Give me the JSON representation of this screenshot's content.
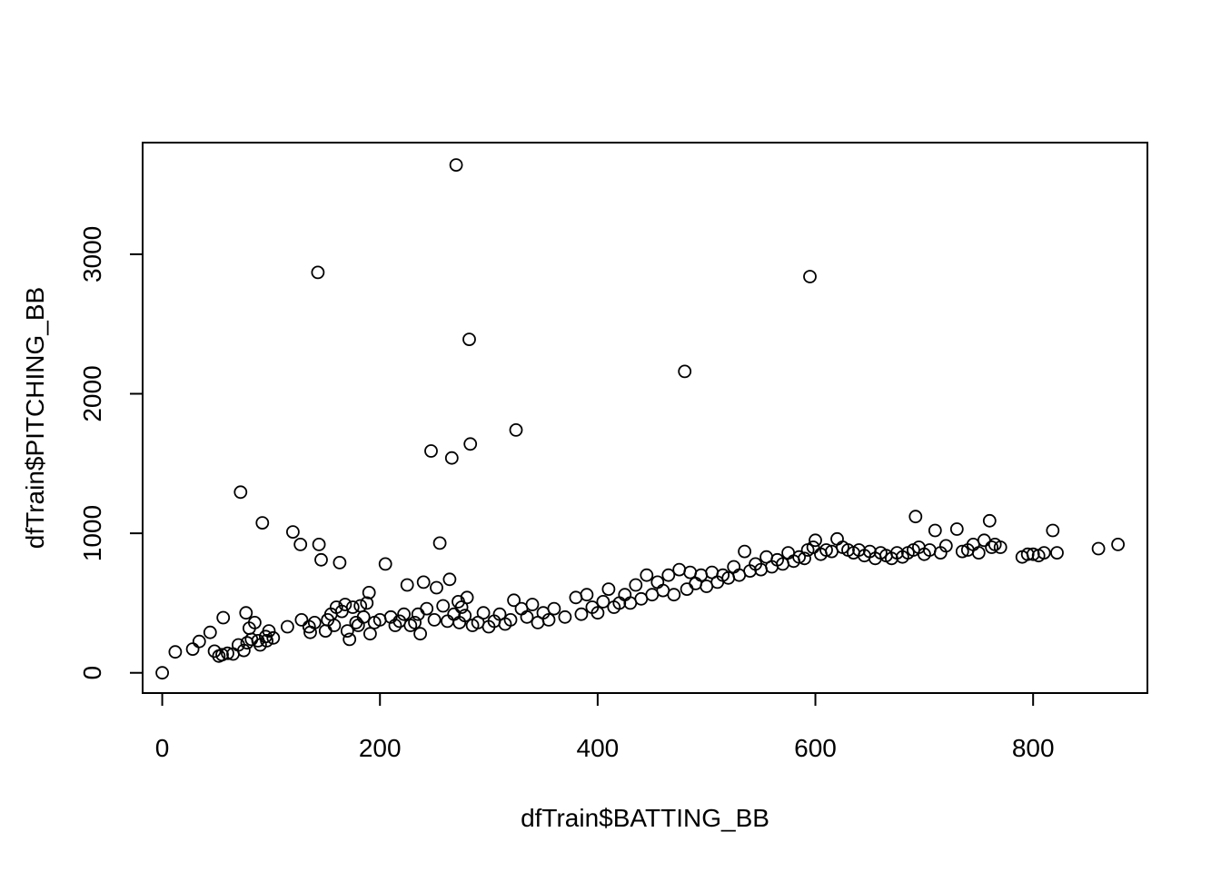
{
  "chart_data": {
    "type": "scatter",
    "title": "",
    "xlabel": "dfTrain$BATTING_BB",
    "ylabel": "dfTrain$PITCHING_BB",
    "xlim": [
      -18,
      905
    ],
    "ylim": [
      -145,
      3800
    ],
    "x_ticks": [
      0,
      200,
      400,
      600,
      800
    ],
    "x_tick_labels": [
      "0",
      "200",
      "400",
      "600",
      "800"
    ],
    "y_ticks": [
      0,
      1000,
      2000,
      3000
    ],
    "y_tick_labels": [
      "0",
      "1000",
      "2000",
      "3000"
    ],
    "grid": false,
    "legend": "none",
    "marker": "open-circle",
    "colors": {
      "point_stroke": "#000000",
      "axis": "#000000",
      "background": "#ffffff"
    },
    "series": [
      {
        "points": [
          [
            0,
            0
          ],
          [
            12,
            150
          ],
          [
            28,
            170
          ],
          [
            34,
            225
          ],
          [
            44,
            290
          ],
          [
            48,
            155
          ],
          [
            52,
            120
          ],
          [
            55,
            130
          ],
          [
            56,
            395
          ],
          [
            60,
            140
          ],
          [
            65,
            135
          ],
          [
            70,
            200
          ],
          [
            72,
            1295
          ],
          [
            75,
            160
          ],
          [
            77,
            430
          ],
          [
            78,
            215
          ],
          [
            80,
            320
          ],
          [
            82,
            240
          ],
          [
            85,
            360
          ],
          [
            88,
            230
          ],
          [
            90,
            200
          ],
          [
            92,
            1075
          ],
          [
            95,
            260
          ],
          [
            96,
            230
          ],
          [
            98,
            300
          ],
          [
            102,
            250
          ],
          [
            115,
            330
          ],
          [
            120,
            1010
          ],
          [
            127,
            920
          ],
          [
            128,
            380
          ],
          [
            135,
            330
          ],
          [
            136,
            290
          ],
          [
            140,
            360
          ],
          [
            143,
            2870
          ],
          [
            144,
            920
          ],
          [
            146,
            810
          ],
          [
            150,
            300
          ],
          [
            152,
            380
          ],
          [
            155,
            420
          ],
          [
            158,
            340
          ],
          [
            160,
            470
          ],
          [
            163,
            790
          ],
          [
            165,
            440
          ],
          [
            168,
            490
          ],
          [
            170,
            300
          ],
          [
            172,
            240
          ],
          [
            175,
            470
          ],
          [
            178,
            360
          ],
          [
            180,
            340
          ],
          [
            182,
            480
          ],
          [
            185,
            400
          ],
          [
            188,
            500
          ],
          [
            190,
            575
          ],
          [
            191,
            280
          ],
          [
            195,
            360
          ],
          [
            200,
            380
          ],
          [
            205,
            780
          ],
          [
            210,
            400
          ],
          [
            214,
            340
          ],
          [
            218,
            370
          ],
          [
            222,
            420
          ],
          [
            225,
            630
          ],
          [
            228,
            340
          ],
          [
            232,
            360
          ],
          [
            235,
            420
          ],
          [
            237,
            280
          ],
          [
            240,
            650
          ],
          [
            243,
            460
          ],
          [
            247,
            1590
          ],
          [
            250,
            380
          ],
          [
            252,
            610
          ],
          [
            255,
            930
          ],
          [
            258,
            480
          ],
          [
            262,
            370
          ],
          [
            264,
            670
          ],
          [
            266,
            1540
          ],
          [
            268,
            420
          ],
          [
            270,
            3640
          ],
          [
            272,
            510
          ],
          [
            273,
            360
          ],
          [
            275,
            470
          ],
          [
            278,
            410
          ],
          [
            280,
            540
          ],
          [
            282,
            2390
          ],
          [
            283,
            1640
          ],
          [
            285,
            340
          ],
          [
            290,
            360
          ],
          [
            295,
            430
          ],
          [
            300,
            330
          ],
          [
            305,
            370
          ],
          [
            310,
            420
          ],
          [
            315,
            350
          ],
          [
            320,
            380
          ],
          [
            323,
            520
          ],
          [
            325,
            1740
          ],
          [
            330,
            460
          ],
          [
            335,
            400
          ],
          [
            340,
            490
          ],
          [
            345,
            360
          ],
          [
            350,
            430
          ],
          [
            355,
            380
          ],
          [
            360,
            460
          ],
          [
            370,
            400
          ],
          [
            380,
            540
          ],
          [
            385,
            420
          ],
          [
            390,
            560
          ],
          [
            395,
            470
          ],
          [
            400,
            430
          ],
          [
            405,
            510
          ],
          [
            410,
            600
          ],
          [
            415,
            470
          ],
          [
            420,
            500
          ],
          [
            425,
            560
          ],
          [
            430,
            500
          ],
          [
            435,
            630
          ],
          [
            440,
            530
          ],
          [
            445,
            700
          ],
          [
            450,
            560
          ],
          [
            455,
            650
          ],
          [
            460,
            590
          ],
          [
            465,
            700
          ],
          [
            470,
            560
          ],
          [
            475,
            740
          ],
          [
            480,
            2160
          ],
          [
            482,
            600
          ],
          [
            485,
            720
          ],
          [
            490,
            640
          ],
          [
            495,
            700
          ],
          [
            500,
            620
          ],
          [
            505,
            720
          ],
          [
            510,
            650
          ],
          [
            515,
            700
          ],
          [
            520,
            680
          ],
          [
            525,
            760
          ],
          [
            530,
            700
          ],
          [
            535,
            870
          ],
          [
            540,
            730
          ],
          [
            545,
            780
          ],
          [
            550,
            740
          ],
          [
            555,
            830
          ],
          [
            560,
            760
          ],
          [
            565,
            810
          ],
          [
            570,
            780
          ],
          [
            575,
            860
          ],
          [
            580,
            800
          ],
          [
            585,
            830
          ],
          [
            590,
            820
          ],
          [
            593,
            880
          ],
          [
            595,
            2840
          ],
          [
            598,
            900
          ],
          [
            600,
            950
          ],
          [
            605,
            850
          ],
          [
            610,
            880
          ],
          [
            615,
            870
          ],
          [
            620,
            960
          ],
          [
            625,
            900
          ],
          [
            630,
            880
          ],
          [
            635,
            860
          ],
          [
            640,
            880
          ],
          [
            645,
            840
          ],
          [
            650,
            870
          ],
          [
            655,
            820
          ],
          [
            660,
            860
          ],
          [
            665,
            840
          ],
          [
            670,
            820
          ],
          [
            675,
            860
          ],
          [
            680,
            830
          ],
          [
            685,
            860
          ],
          [
            690,
            880
          ],
          [
            692,
            1120
          ],
          [
            695,
            900
          ],
          [
            700,
            850
          ],
          [
            705,
            880
          ],
          [
            710,
            1020
          ],
          [
            715,
            860
          ],
          [
            720,
            910
          ],
          [
            730,
            1030
          ],
          [
            735,
            870
          ],
          [
            740,
            880
          ],
          [
            745,
            920
          ],
          [
            750,
            860
          ],
          [
            755,
            950
          ],
          [
            760,
            1090
          ],
          [
            762,
            900
          ],
          [
            765,
            920
          ],
          [
            770,
            900
          ],
          [
            790,
            830
          ],
          [
            795,
            850
          ],
          [
            800,
            850
          ],
          [
            805,
            840
          ],
          [
            810,
            860
          ],
          [
            818,
            1020
          ],
          [
            822,
            860
          ],
          [
            860,
            890
          ],
          [
            878,
            920
          ]
        ]
      }
    ]
  }
}
